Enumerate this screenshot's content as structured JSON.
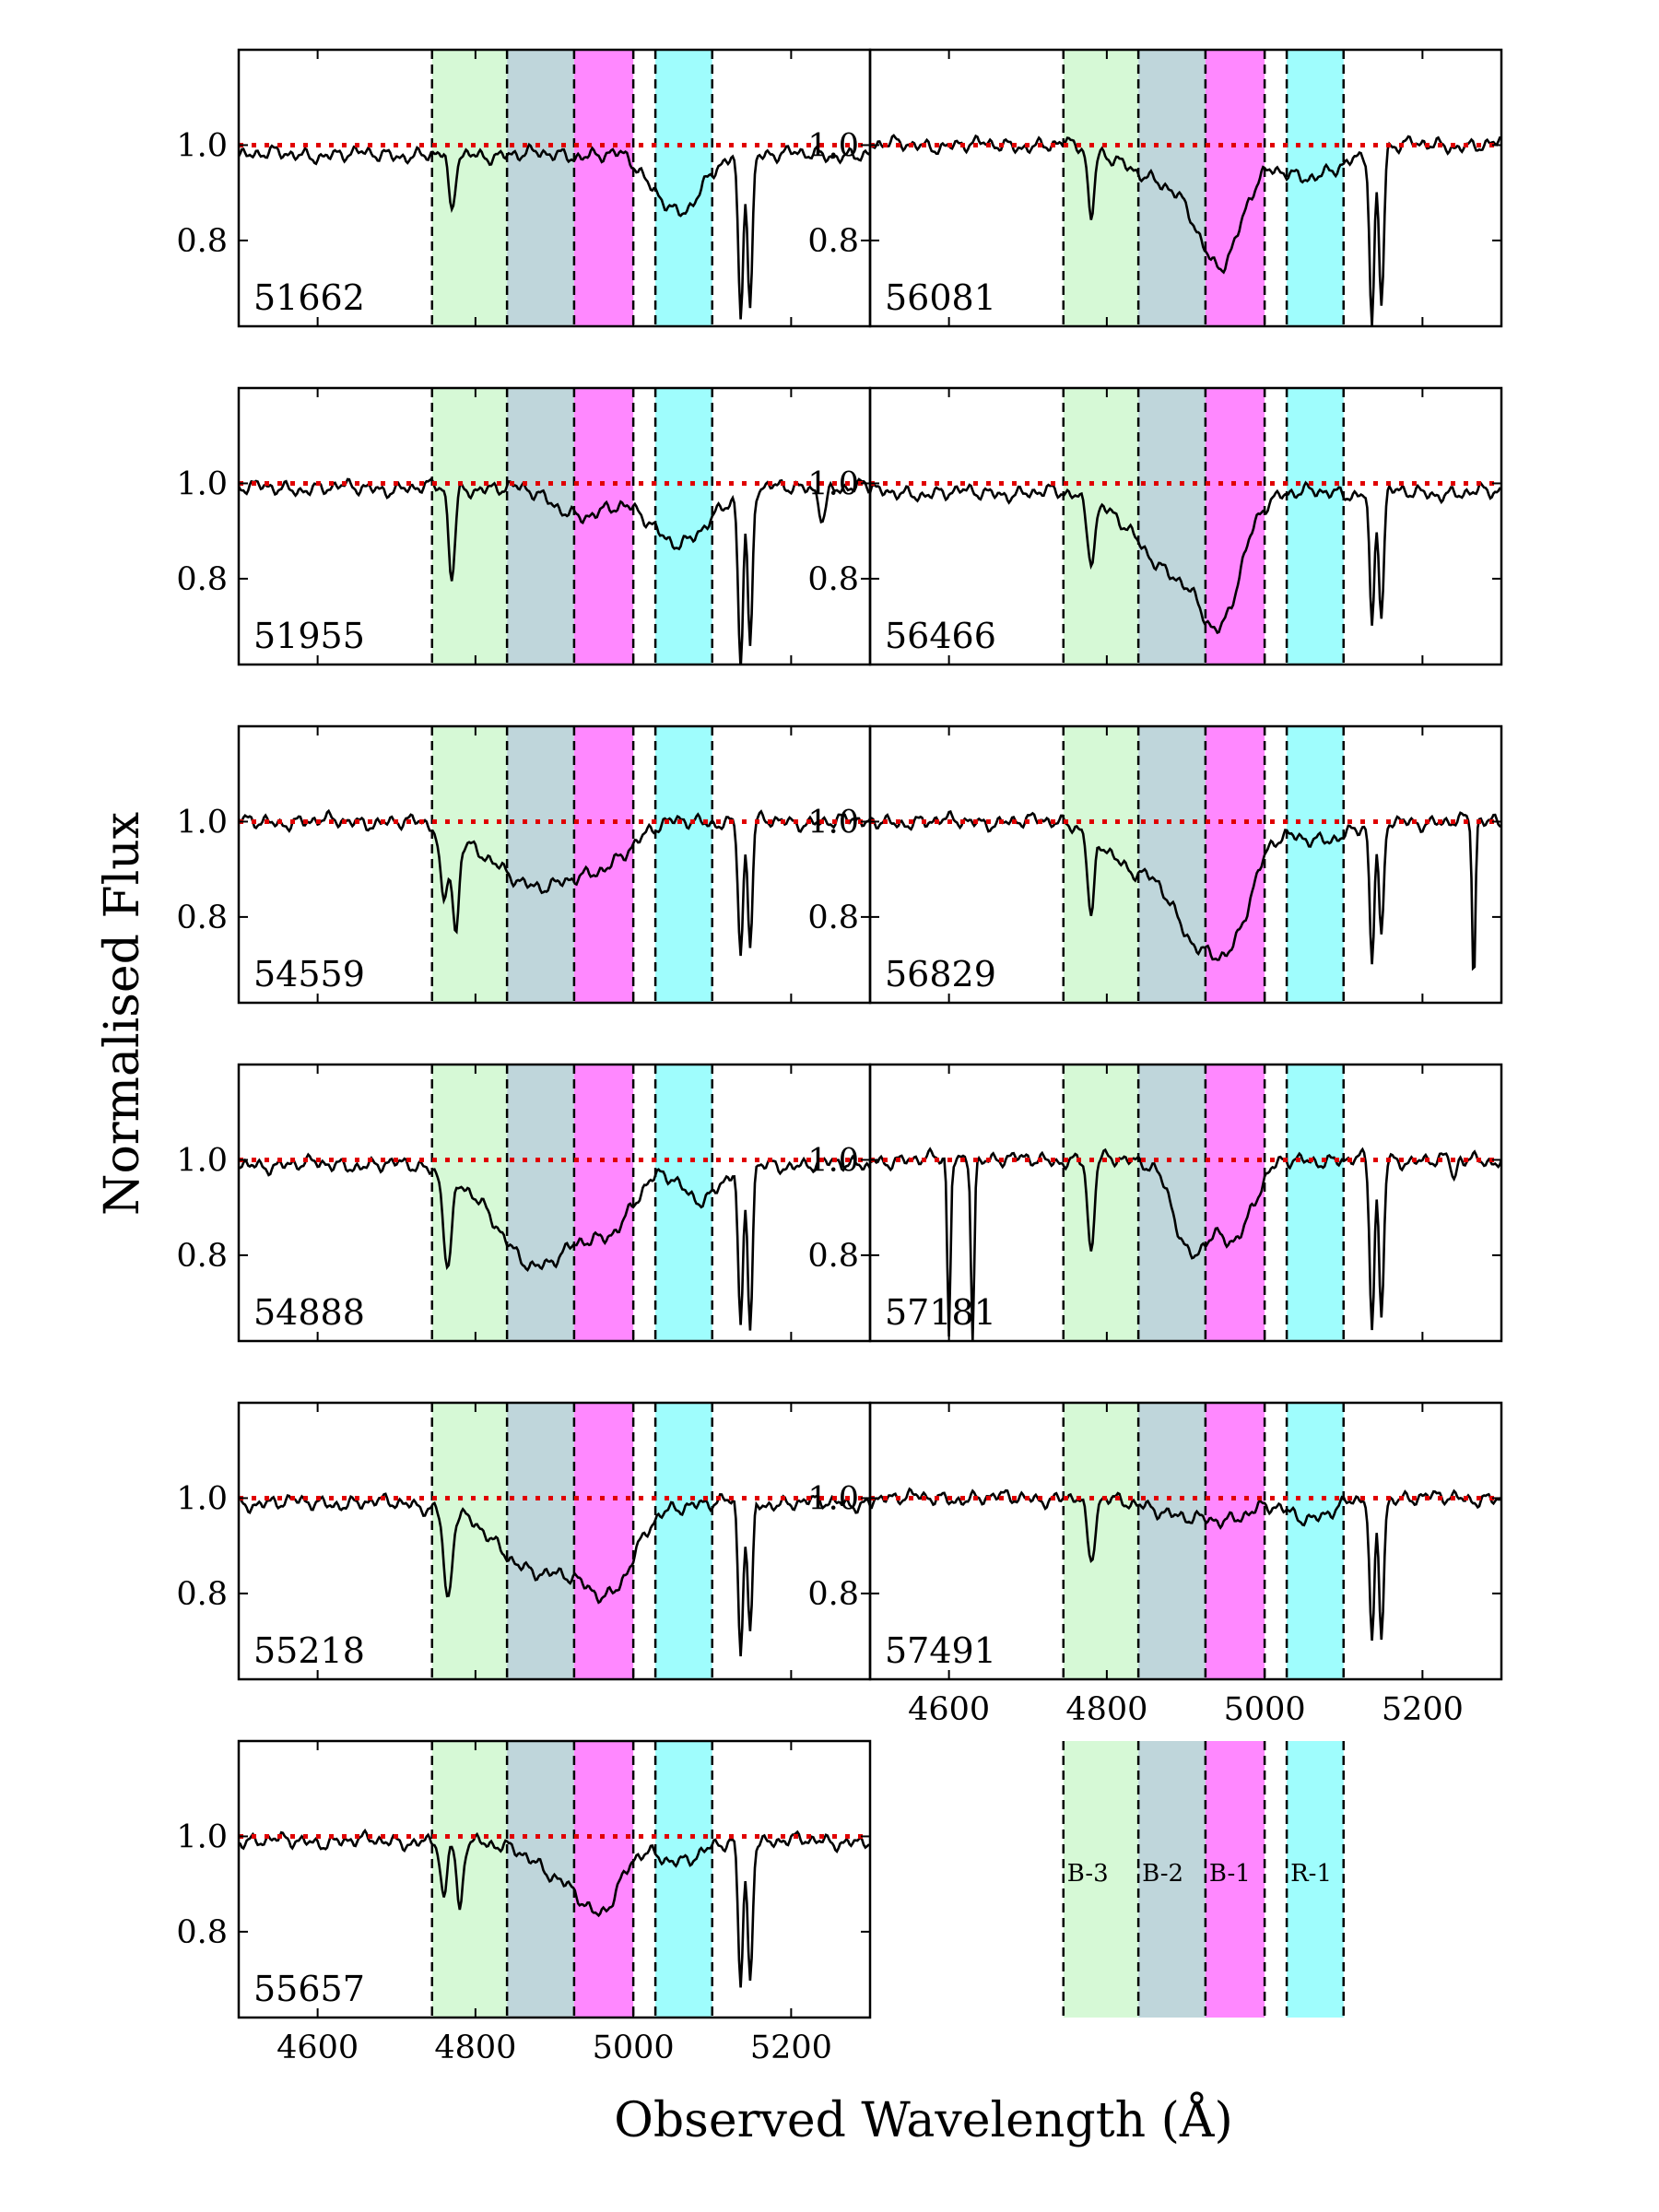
{
  "chart_data": {
    "type": "line",
    "figure": {
      "ylabel": "Normalised Flux",
      "xlabel": "Observed Wavelength (Å)",
      "xlim": [
        4500,
        5300
      ],
      "ylim": [
        0.62,
        1.2
      ],
      "x_ticks": [
        4600,
        4800,
        5000,
        5200
      ],
      "x_tick_labels": [
        "4600",
        "4800",
        "5000",
        "5200"
      ],
      "y_ticks": [
        0.8,
        1.0
      ],
      "y_tick_labels": [
        "0.8",
        "1.0"
      ],
      "reference_level": 1.0,
      "reference_color": "#e00000",
      "spectrum_color": "#000000"
    },
    "bands": [
      {
        "name": "B-3",
        "label": "B-3",
        "range": [
          4745,
          4840
        ],
        "color": "#d6f9d6"
      },
      {
        "name": "B-2",
        "label": "B-2",
        "range": [
          4840,
          4925
        ],
        "color": "#bfd6db"
      },
      {
        "name": "B-1",
        "label": "B-1",
        "range": [
          4925,
          5000
        ],
        "color": "#ff88ff"
      },
      {
        "name": "R-1",
        "label": "R-1",
        "range": [
          5028,
          5100
        ],
        "color": "#9ffdfd"
      }
    ],
    "panels": [
      {
        "mjd": "51662",
        "column": "left",
        "row": 0,
        "continuum": 0.98,
        "troughs": [
          [
            4770,
            0.85,
            4
          ],
          [
            5060,
            0.86,
            28
          ],
          [
            5015,
            0.96,
            12
          ],
          [
            5136,
            0.64,
            3
          ],
          [
            5148,
            0.67,
            3
          ]
        ]
      },
      {
        "mjd": "51955",
        "column": "left",
        "row": 1,
        "continuum": 0.99,
        "troughs": [
          [
            4770,
            0.8,
            4
          ],
          [
            4940,
            0.93,
            35
          ],
          [
            5060,
            0.87,
            35
          ],
          [
            5136,
            0.63,
            3
          ],
          [
            5148,
            0.66,
            3
          ],
          [
            5240,
            0.93,
            4
          ]
        ]
      },
      {
        "mjd": "54559",
        "column": "left",
        "row": 2,
        "continuum": 1.0,
        "troughs": [
          [
            4760,
            0.85,
            5
          ],
          [
            4775,
            0.8,
            4
          ],
          [
            4870,
            0.87,
            55
          ],
          [
            4960,
            0.93,
            35
          ],
          [
            5136,
            0.72,
            3
          ],
          [
            5148,
            0.74,
            3
          ]
        ]
      },
      {
        "mjd": "54888",
        "column": "left",
        "row": 3,
        "continuum": 0.99,
        "troughs": [
          [
            4765,
            0.8,
            5
          ],
          [
            4880,
            0.78,
            55
          ],
          [
            4975,
            0.9,
            30
          ],
          [
            5085,
            0.92,
            25
          ],
          [
            5136,
            0.64,
            3
          ],
          [
            5148,
            0.65,
            3
          ]
        ]
      },
      {
        "mjd": "55218",
        "column": "left",
        "row": 4,
        "continuum": 0.99,
        "troughs": [
          [
            4765,
            0.8,
            5
          ],
          [
            4890,
            0.84,
            60
          ],
          [
            4975,
            0.86,
            30
          ],
          [
            5136,
            0.67,
            3
          ],
          [
            5148,
            0.71,
            3
          ]
        ]
      },
      {
        "mjd": "55657",
        "column": "left",
        "row": 5,
        "continuum": 0.99,
        "troughs": [
          [
            4760,
            0.86,
            4
          ],
          [
            4780,
            0.84,
            4
          ],
          [
            4900,
            0.92,
            30
          ],
          [
            4960,
            0.85,
            25
          ],
          [
            5060,
            0.95,
            30
          ],
          [
            5136,
            0.69,
            3
          ],
          [
            5148,
            0.7,
            3
          ]
        ]
      },
      {
        "mjd": "56081",
        "column": "right",
        "row": 0,
        "continuum": 1.0,
        "troughs": [
          [
            4780,
            0.85,
            4
          ],
          [
            4870,
            0.92,
            40
          ],
          [
            4945,
            0.76,
            28
          ],
          [
            5060,
            0.93,
            40
          ],
          [
            5136,
            0.64,
            3
          ],
          [
            5148,
            0.67,
            3
          ]
        ]
      },
      {
        "mjd": "56466",
        "column": "right",
        "row": 1,
        "continuum": 0.98,
        "troughs": [
          [
            4780,
            0.86,
            5
          ],
          [
            4880,
            0.82,
            45
          ],
          [
            4945,
            0.75,
            25
          ],
          [
            5136,
            0.7,
            3
          ],
          [
            5148,
            0.72,
            3
          ]
        ]
      },
      {
        "mjd": "56829",
        "column": "right",
        "row": 2,
        "continuum": 1.0,
        "troughs": [
          [
            4780,
            0.82,
            4
          ],
          [
            4830,
            0.9,
            30
          ],
          [
            4910,
            0.77,
            30
          ],
          [
            4960,
            0.8,
            25
          ],
          [
            5060,
            0.96,
            40
          ],
          [
            5136,
            0.71,
            3
          ],
          [
            5148,
            0.75,
            3
          ],
          [
            5265,
            0.65,
            2
          ]
        ]
      },
      {
        "mjd": "57181",
        "column": "right",
        "row": 3,
        "continuum": 1.0,
        "troughs": [
          [
            4600,
            0.63,
            2
          ],
          [
            4630,
            0.63,
            2
          ],
          [
            4780,
            0.8,
            4
          ],
          [
            4905,
            0.81,
            20
          ],
          [
            4960,
            0.84,
            25
          ],
          [
            5136,
            0.65,
            3
          ],
          [
            5148,
            0.67,
            3
          ],
          [
            5240,
            0.95,
            3
          ]
        ]
      },
      {
        "mjd": "57491",
        "column": "right",
        "row": 4,
        "continuum": 1.0,
        "troughs": [
          [
            4780,
            0.86,
            5
          ],
          [
            4890,
            0.96,
            30
          ],
          [
            4960,
            0.96,
            30
          ],
          [
            5060,
            0.96,
            30
          ],
          [
            5136,
            0.69,
            3
          ],
          [
            5148,
            0.72,
            3
          ]
        ]
      }
    ]
  }
}
